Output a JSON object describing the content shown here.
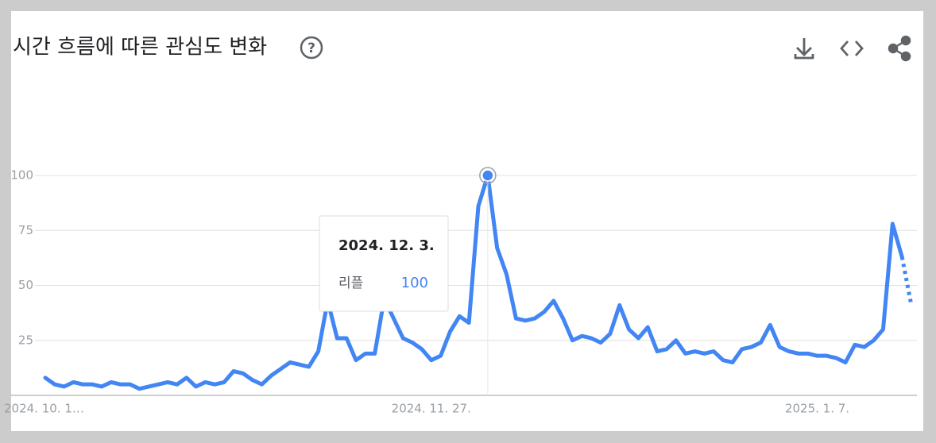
{
  "chart_data": {
    "type": "line",
    "title": "시간 흐름에 따른 관심도 변화",
    "categories": [
      "2024. 10. 1…",
      null,
      null,
      null,
      null,
      null,
      null,
      null,
      null,
      null,
      null,
      null,
      null,
      null,
      null,
      null,
      null,
      null,
      null,
      null,
      null,
      null,
      null,
      null,
      null,
      null,
      null,
      null,
      null,
      null,
      null,
      null,
      null,
      null,
      null,
      null,
      null,
      null,
      null,
      null,
      null,
      "2024. 11. 27.",
      null,
      null,
      null,
      null,
      null,
      null,
      null,
      null,
      null,
      null,
      null,
      null,
      null,
      null,
      null,
      null,
      null,
      null,
      null,
      null,
      null,
      null,
      null,
      null,
      null,
      null,
      null,
      null,
      null,
      null,
      null,
      null,
      null,
      null,
      null,
      null,
      null,
      null,
      null,
      null,
      "2025. 1. 7.",
      null,
      null,
      null,
      null,
      null,
      null,
      null,
      null,
      null,
      null
    ],
    "series": [
      {
        "name": "리플",
        "color": "#4285f4",
        "values": [
          8,
          5,
          4,
          6,
          5,
          5,
          4,
          6,
          5,
          5,
          3,
          4,
          5,
          6,
          5,
          8,
          4,
          6,
          5,
          6,
          11,
          10,
          7,
          5,
          9,
          12,
          15,
          14,
          13,
          20,
          43,
          26,
          26,
          16,
          19,
          19,
          44,
          35,
          26,
          24,
          21,
          16,
          18,
          29,
          36,
          33,
          86,
          100,
          67,
          55,
          35,
          34,
          35,
          38,
          43,
          35,
          25,
          27,
          26,
          24,
          28,
          41,
          30,
          26,
          31,
          20,
          21,
          25,
          19,
          20,
          19,
          20,
          16,
          15,
          21,
          22,
          24,
          32,
          22,
          20,
          19,
          19,
          18,
          18,
          17,
          15,
          23,
          22,
          25,
          30,
          78,
          63,
          41
        ]
      }
    ],
    "ylim": [
      0,
      100
    ],
    "yticks": [
      25,
      50,
      75,
      100
    ],
    "grid": true,
    "tooltip": {
      "date": "2024. 12. 3."
    }
  }
}
